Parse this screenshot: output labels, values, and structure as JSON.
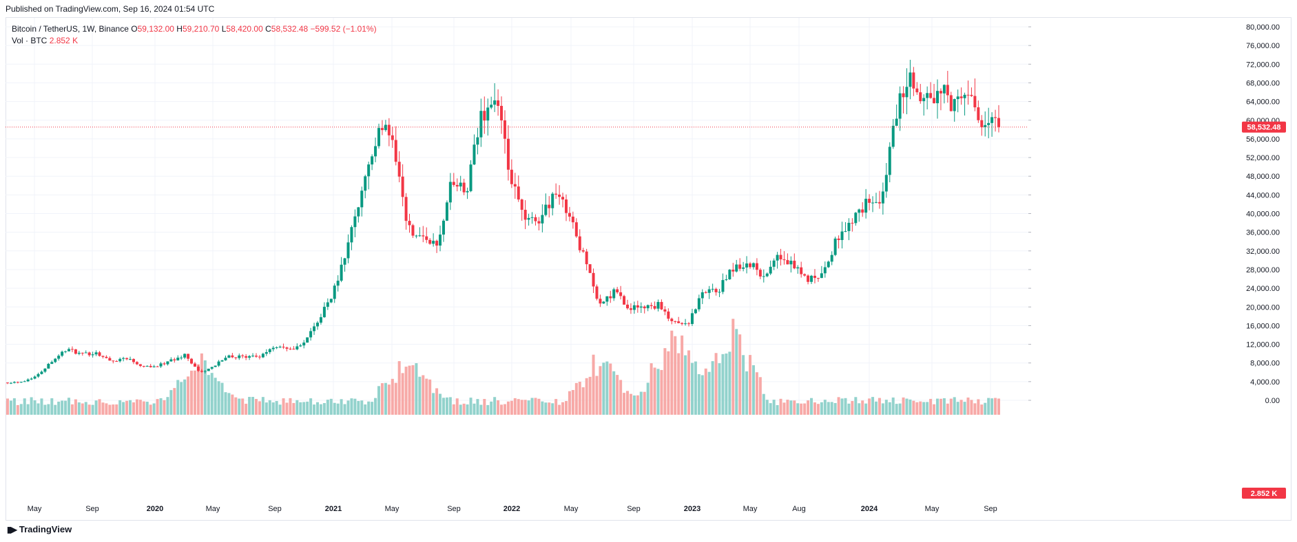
{
  "header": {
    "published": "Published on TradingView.com, Sep 16, 2024 01:54 UTC"
  },
  "legend": {
    "symbol": "Bitcoin / TetherUS, 1W, Binance",
    "o_label": "O",
    "o": "59,132.00",
    "h_label": "H",
    "h": "59,210.70",
    "l_label": "L",
    "l": "58,420.00",
    "c_label": "C",
    "c": "58,532.48",
    "change": "−599.52 (−1.01%)",
    "vol_label": "Vol · BTC",
    "vol": "2.852 K"
  },
  "price_axis": {
    "ticks": [
      "80,000.00",
      "76,000.00",
      "72,000.00",
      "68,000.00",
      "64,000.00",
      "60,000.00",
      "56,000.00",
      "52,000.00",
      "48,000.00",
      "44,000.00",
      "40,000.00",
      "36,000.00",
      "32,000.00",
      "28,000.00",
      "24,000.00",
      "20,000.00",
      "16,000.00",
      "12,000.00",
      "8,000.00",
      "4,000.00",
      "0.00"
    ],
    "last_price_label": "58,532.48",
    "last_volume_label": "2.852 K"
  },
  "time_axis": {
    "labels": [
      {
        "text": "May",
        "bold": false
      },
      {
        "text": "Sep",
        "bold": false
      },
      {
        "text": "2020",
        "bold": true
      },
      {
        "text": "May",
        "bold": false
      },
      {
        "text": "Sep",
        "bold": false
      },
      {
        "text": "2021",
        "bold": true
      },
      {
        "text": "May",
        "bold": false
      },
      {
        "text": "Sep",
        "bold": false
      },
      {
        "text": "2022",
        "bold": true
      },
      {
        "text": "May",
        "bold": false
      },
      {
        "text": "Sep",
        "bold": false
      },
      {
        "text": "2023",
        "bold": true
      },
      {
        "text": "May",
        "bold": false
      },
      {
        "text": "Aug",
        "bold": false
      },
      {
        "text": "2024",
        "bold": true
      },
      {
        "text": "May",
        "bold": false
      },
      {
        "text": "Sep",
        "bold": false
      }
    ]
  },
  "brand": {
    "name": "TradingView",
    "logo_icon": "tradingview-logo-icon"
  },
  "colors": {
    "up": "#089981",
    "down": "#f23645",
    "up_vol": "#92d2cc",
    "down_vol": "#f7a9a7",
    "grid": "#f0f3fa"
  },
  "chart_data": {
    "type": "candlestick",
    "title": "Bitcoin / TetherUS, 1W, Binance",
    "interval": "1W",
    "x_range": [
      "2019-02",
      "2024-09-16"
    ],
    "ylim": [
      0,
      80000
    ],
    "last_close": 58532.48,
    "keyframes": [
      {
        "date": "2019-02",
        "price": 3800
      },
      {
        "date": "2019-03",
        "price": 4000
      },
      {
        "date": "2019-04",
        "price": 5300
      },
      {
        "date": "2019-05",
        "price": 8500
      },
      {
        "date": "2019-06",
        "price": 11000
      },
      {
        "date": "2019-07",
        "price": 9800
      },
      {
        "date": "2019-08",
        "price": 10200
      },
      {
        "date": "2019-09",
        "price": 8300
      },
      {
        "date": "2019-10",
        "price": 9200
      },
      {
        "date": "2019-11",
        "price": 7500
      },
      {
        "date": "2019-12",
        "price": 7200
      },
      {
        "date": "2020-01",
        "price": 8500
      },
      {
        "date": "2020-02",
        "price": 9800
      },
      {
        "date": "2020-03",
        "price": 5800
      },
      {
        "date": "2020-04",
        "price": 7500
      },
      {
        "date": "2020-05",
        "price": 9500
      },
      {
        "date": "2020-06",
        "price": 9200
      },
      {
        "date": "2020-07",
        "price": 9300
      },
      {
        "date": "2020-08",
        "price": 11700
      },
      {
        "date": "2020-09",
        "price": 10700
      },
      {
        "date": "2020-10",
        "price": 12000
      },
      {
        "date": "2020-11",
        "price": 17000
      },
      {
        "date": "2020-12",
        "price": 23000
      },
      {
        "date": "2021-01",
        "price": 33000
      },
      {
        "date": "2021-02",
        "price": 46000
      },
      {
        "date": "2021-03",
        "price": 57000
      },
      {
        "date": "2021-04",
        "price": 57500
      },
      {
        "date": "2021-05",
        "price": 37000
      },
      {
        "date": "2021-06",
        "price": 35000
      },
      {
        "date": "2021-07",
        "price": 33000
      },
      {
        "date": "2021-08",
        "price": 47000
      },
      {
        "date": "2021-09",
        "price": 44000
      },
      {
        "date": "2021-10",
        "price": 61000
      },
      {
        "date": "2021-11",
        "price": 65000
      },
      {
        "date": "2021-12",
        "price": 47000
      },
      {
        "date": "2022-01",
        "price": 38000
      },
      {
        "date": "2022-02",
        "price": 39000
      },
      {
        "date": "2022-03",
        "price": 45000
      },
      {
        "date": "2022-04",
        "price": 39000
      },
      {
        "date": "2022-05",
        "price": 30000
      },
      {
        "date": "2022-06",
        "price": 20000
      },
      {
        "date": "2022-07",
        "price": 23500
      },
      {
        "date": "2022-08",
        "price": 20000
      },
      {
        "date": "2022-09",
        "price": 19500
      },
      {
        "date": "2022-10",
        "price": 20500
      },
      {
        "date": "2022-11",
        "price": 16500
      },
      {
        "date": "2022-12",
        "price": 16500
      },
      {
        "date": "2023-01",
        "price": 23000
      },
      {
        "date": "2023-02",
        "price": 23500
      },
      {
        "date": "2023-03",
        "price": 28000
      },
      {
        "date": "2023-04",
        "price": 29500
      },
      {
        "date": "2023-05",
        "price": 27000
      },
      {
        "date": "2023-06",
        "price": 30500
      },
      {
        "date": "2023-07",
        "price": 29300
      },
      {
        "date": "2023-08",
        "price": 26000
      },
      {
        "date": "2023-09",
        "price": 27000
      },
      {
        "date": "2023-10",
        "price": 34500
      },
      {
        "date": "2023-11",
        "price": 37700
      },
      {
        "date": "2023-12",
        "price": 42300
      },
      {
        "date": "2024-01",
        "price": 42600
      },
      {
        "date": "2024-02",
        "price": 61000
      },
      {
        "date": "2024-03",
        "price": 69700
      },
      {
        "date": "2024-04",
        "price": 63000
      },
      {
        "date": "2024-05",
        "price": 67500
      },
      {
        "date": "2024-06",
        "price": 62800
      },
      {
        "date": "2024-07",
        "price": 66000
      },
      {
        "date": "2024-08",
        "price": 59000
      },
      {
        "date": "2024-09",
        "price": 58532
      }
    ],
    "volume_peaks": [
      {
        "date": "2020-03",
        "btc": "high"
      },
      {
        "date": "2021-05",
        "btc": "high"
      },
      {
        "date": "2022-06",
        "btc": "high"
      },
      {
        "date": "2022-11",
        "btc": "very high"
      },
      {
        "date": "2023-03",
        "btc": "very high"
      }
    ]
  }
}
